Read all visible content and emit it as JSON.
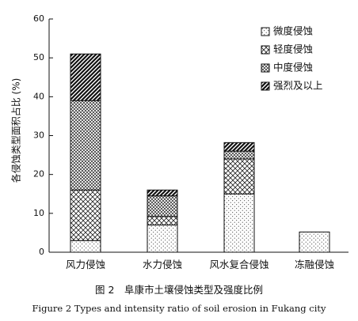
{
  "chart_data": {
    "type": "bar",
    "stacked": true,
    "categories": [
      "风力侵蚀",
      "水力侵蚀",
      "风水复合侵蚀",
      "冻融侵蚀"
    ],
    "series": [
      {
        "name": "微度侵蚀",
        "pattern": "dots",
        "values": [
          3,
          7,
          15,
          5.2
        ]
      },
      {
        "name": "轻度侵蚀",
        "pattern": "crosshatch",
        "values": [
          13,
          2.2,
          9,
          0
        ]
      },
      {
        "name": "中度侵蚀",
        "pattern": "dense-crosshatch",
        "values": [
          23,
          5.3,
          2,
          0
        ]
      },
      {
        "name": "强烈及以上",
        "pattern": "dense-diagonal",
        "values": [
          12,
          1.5,
          2.2,
          0
        ]
      }
    ],
    "ylabel": "各侵蚀类型面积占比 (%)",
    "ylim": [
      0,
      60
    ],
    "yticks": [
      "0",
      "10",
      "20",
      "30",
      "40",
      "50",
      "60"
    ],
    "grid": false,
    "legend_position": "top-right",
    "caption_cn": "图 2　阜康市土壤侵蚀类型及强度比例",
    "caption_en": "Figure 2 Types and intensity ratio of soil erosion in Fukang city"
  },
  "colors": {
    "ink": "#111111",
    "background": "#ffffff"
  }
}
